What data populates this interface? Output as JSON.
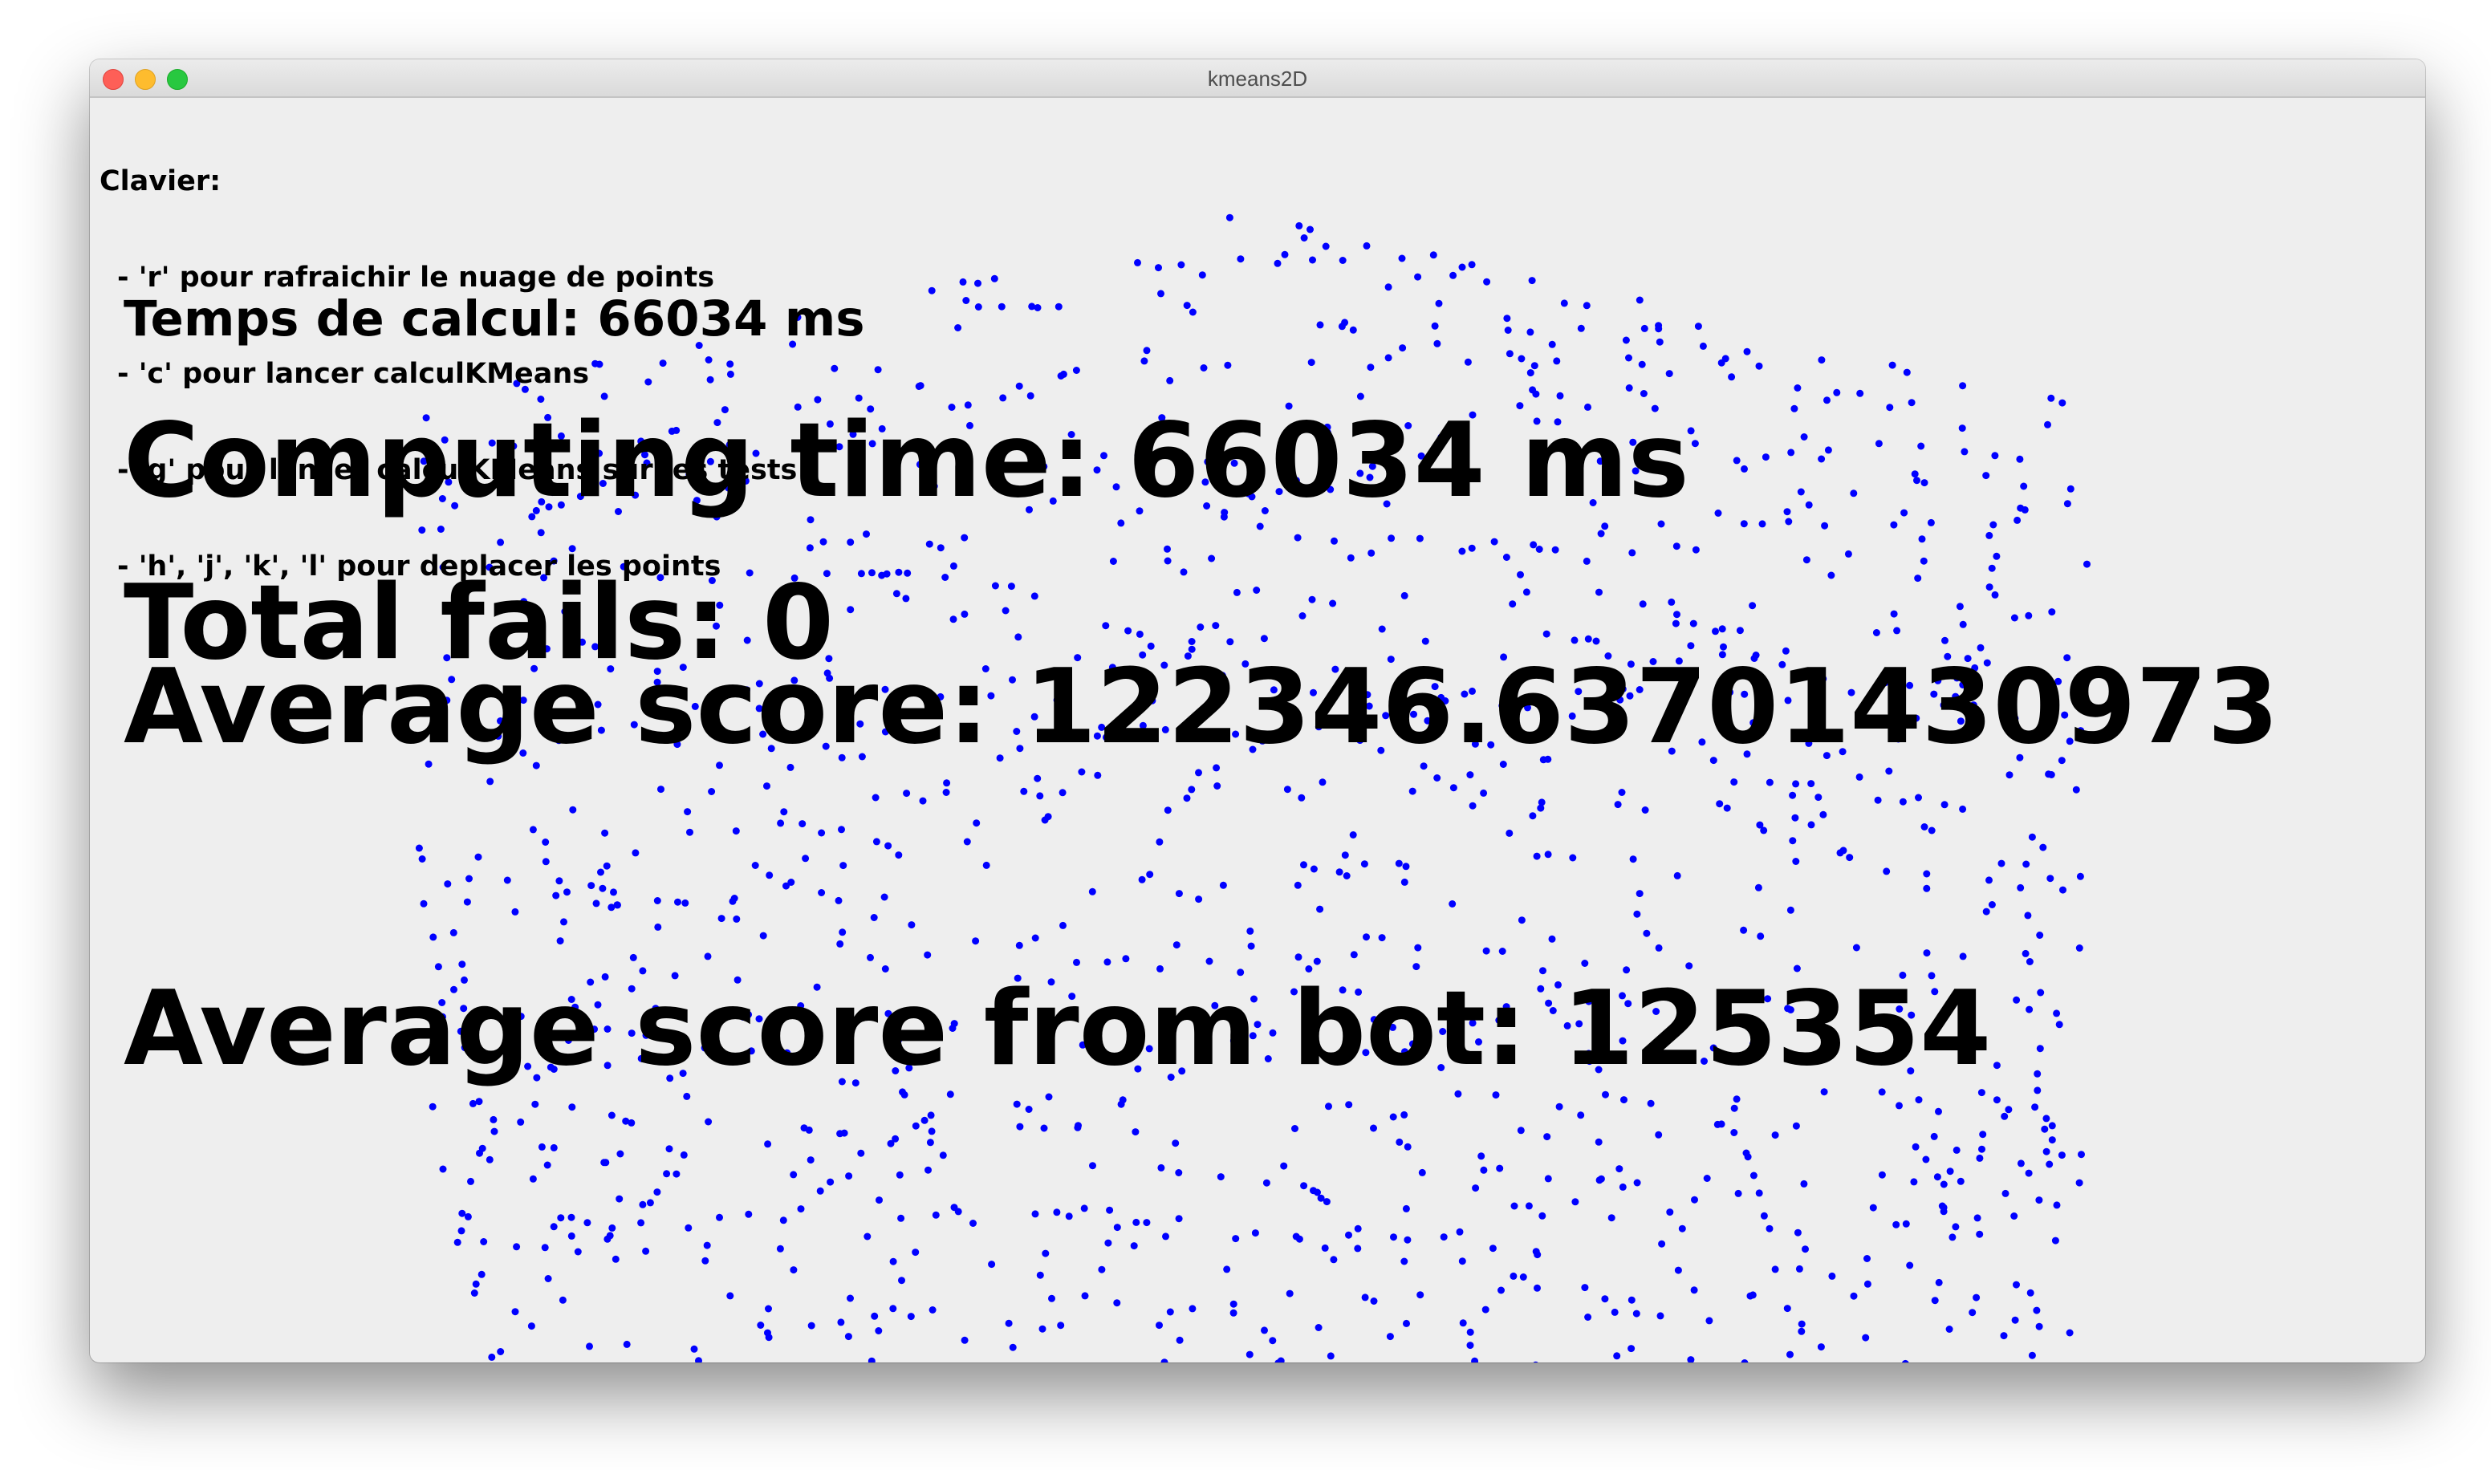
{
  "window": {
    "title": "kmeans2D"
  },
  "help": {
    "heading": "Clavier:",
    "items": [
      "- 'r' pour rafraichir le nuage de points",
      "- 'c' pour lancer calculKMeans",
      "- 'g' pour lancer calculKMeans sur les tests",
      "- 'h', 'j', 'k', 'l' pour deplacer les points"
    ]
  },
  "stats": {
    "temps_de_calcul": "Temps de calcul: 66034 ms",
    "computing_time": "Computing time: 66034 ms",
    "total_fails": "Total fails: 0",
    "average_score": "Average score: 122346.63701430973",
    "average_score_bot": "Average score from bot: 125354"
  },
  "point_color": "#0000ff",
  "colors": {
    "canvas_background": "#eeeeee",
    "text": "#000000"
  }
}
